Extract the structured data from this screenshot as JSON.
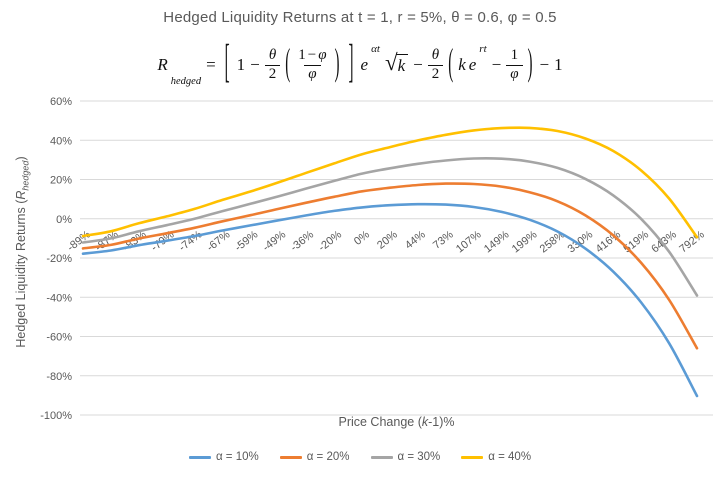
{
  "title": "Hedged Liquidity Returns at t = 1, r = 5%, θ = 0.6, φ = 0.5",
  "formula": {
    "lhs": "R",
    "lhs_sub": "hedged",
    "eq": "=",
    "lbracket": "[",
    "rbracket": "]",
    "lparen": "(",
    "rparen": ")",
    "one": "1",
    "minus": "−",
    "theta": "θ",
    "two": "2",
    "phi": "φ",
    "e": "e",
    "exp_alpha": "αt",
    "sqrt_sign": "√",
    "radicand": "k",
    "k": "k",
    "exp_r": "rt",
    "trailing_minus": "−",
    "trailing_one": "1"
  },
  "chart_data": {
    "type": "line",
    "title": "Hedged Liquidity Returns at t = 1, r = 5%, θ = 0.6, φ = 0.5",
    "xlabel": "Price Change (k-1)%",
    "xlabel_parts": {
      "prefix": "Price Change (",
      "var": "k",
      "suffix": "-1)%"
    },
    "ylabel": "Hedged Liquidity Returns (R_hedged)",
    "ylabel_parts": {
      "prefix": "Hedged Liquidity Returns (",
      "var": "R",
      "sub": "hedged",
      "suffix": ")"
    },
    "grid": "horizontal",
    "legend_position": "bottom",
    "ylim_percent": [
      -100,
      60
    ],
    "y_tick_labels": [
      "60%",
      "40%",
      "20%",
      "0%",
      "-20%",
      "-40%",
      "-60%",
      "-80%",
      "-100%"
    ],
    "y_tick_values": [
      60,
      40,
      20,
      0,
      -20,
      -40,
      -60,
      -80,
      -100
    ],
    "categories": [
      "-89%",
      "-87%",
      "-83%",
      "-79%",
      "-74%",
      "-67%",
      "-59%",
      "-49%",
      "-36%",
      "-20%",
      "0%",
      "20%",
      "44%",
      "73%",
      "107%",
      "149%",
      "199%",
      "258%",
      "330%",
      "416%",
      "519%",
      "643%",
      "792%"
    ],
    "values_unit": "%",
    "series": [
      {
        "name": "α = 10%",
        "color": "#5B9BD5",
        "values": [
          -17.8,
          -16.2,
          -13.5,
          -11.2,
          -8.8,
          -6.0,
          -3.4,
          -0.8,
          1.7,
          4.0,
          5.8,
          6.9,
          7.4,
          7.2,
          6.0,
          3.5,
          -0.5,
          -6.5,
          -15.2,
          -27.0,
          -42.7,
          -63.4,
          -90.3
        ]
      },
      {
        "name": "α = 20%",
        "color": "#ED7D31",
        "values": [
          -15.1,
          -13.3,
          -10.1,
          -7.4,
          -4.6,
          -1.3,
          1.8,
          5.0,
          8.2,
          11.2,
          14.0,
          15.8,
          17.2,
          17.9,
          17.7,
          16.4,
          13.5,
          8.9,
          1.7,
          -8.5,
          -22.5,
          -41.3,
          -66.0
        ]
      },
      {
        "name": "α = 30%",
        "color": "#A5A5A5",
        "values": [
          -12.1,
          -10.0,
          -6.4,
          -3.3,
          0.0,
          3.9,
          7.6,
          11.4,
          15.4,
          19.3,
          23.0,
          25.7,
          28.0,
          29.7,
          30.7,
          30.6,
          29.1,
          25.9,
          20.3,
          11.9,
          -0.1,
          -16.8,
          -39.1
        ]
      },
      {
        "name": "α = 40%",
        "color": "#FFC000",
        "values": [
          -8.8,
          -6.4,
          -2.3,
          1.2,
          5.0,
          9.6,
          13.9,
          18.5,
          23.4,
          28.2,
          32.9,
          36.5,
          39.9,
          42.8,
          45.0,
          46.2,
          46.3,
          44.7,
          40.9,
          34.5,
          24.6,
          10.3,
          -9.4
        ]
      }
    ],
    "colors": {
      "gridline": "#D9D9D9",
      "axis_text": "#595959",
      "title_text": "#595959"
    }
  }
}
